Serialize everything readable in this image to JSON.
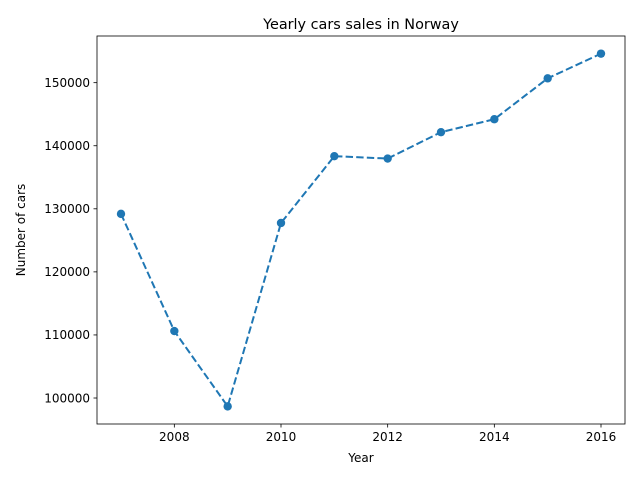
{
  "chart_data": {
    "type": "line",
    "title": "Yearly cars sales in Norway",
    "xlabel": "Year",
    "ylabel": "Number of cars",
    "x": [
      2007,
      2008,
      2009,
      2010,
      2011,
      2012,
      2013,
      2014,
      2015,
      2016
    ],
    "series": [
      {
        "values": [
          129195,
          110617,
          98675,
          127754,
          138345,
          137967,
          142151,
          144202,
          150686,
          154603
        ],
        "color": "#1f77b4",
        "line_style": "dashed",
        "marker": "circle"
      }
    ],
    "xticks": [
      2008,
      2010,
      2012,
      2014,
      2016
    ],
    "yticks": [
      100000,
      110000,
      120000,
      130000,
      140000,
      150000
    ],
    "xlim": [
      2006.55,
      2016.45
    ],
    "ylim": [
      95879,
      157400
    ],
    "grid": false,
    "legend": "none"
  }
}
